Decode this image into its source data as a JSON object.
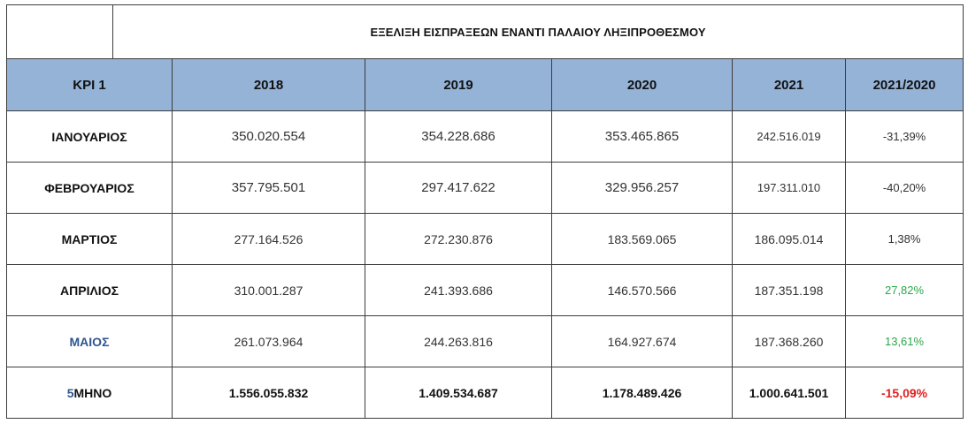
{
  "title": "ΕΞΕΛΙΞΗ ΕΙΣΠΡΑΞΕΩΝ ΕΝΑΝΤΙ ΠΑΛΑΙΟΥ ΛΗΞΙΠΡΟΘΕΣΜΟΥ",
  "headers": [
    "KPI 1",
    "2018",
    "2019",
    "2020",
    "2021",
    "2021/2020"
  ],
  "rows": [
    {
      "label": "ΙΑΝΟΥΑΡΙΟΣ",
      "values": [
        "350.020.554",
        "354.228.686",
        "353.465.865",
        "242.516.019",
        "-31,39%"
      ],
      "label_color": "#111111",
      "pct_color": "#333333"
    },
    {
      "label": "ΦΕΒΡΟΥΑΡΙΟΣ",
      "values": [
        "357.795.501",
        "297.417.622",
        "329.956.257",
        "197.311.010",
        "-40,20%"
      ],
      "label_color": "#111111",
      "pct_color": "#333333"
    },
    {
      "label": "ΜΑΡΤΙΟΣ",
      "values": [
        "277.164.526",
        "272.230.876",
        "183.569.065",
        "186.095.014",
        "1,38%"
      ],
      "label_color": "#111111",
      "pct_color": "#333333"
    },
    {
      "label": "ΑΠΡΙΛΙΟΣ",
      "values": [
        "310.001.287",
        "241.393.686",
        "146.570.566",
        "187.351.198",
        "27,82%"
      ],
      "label_color": "#111111",
      "pct_color": "#2aa84a"
    },
    {
      "label": "ΜΑΙΟΣ",
      "values": [
        "261.073.964",
        "244.263.816",
        "164.927.674",
        "187.368.260",
        "13,61%"
      ],
      "label_color": "#2f5590",
      "pct_color": "#2aa84a"
    }
  ],
  "total": {
    "label_prefix": "5",
    "label_rest": "ΜΗΝΟ",
    "values": [
      "1.556.055.832",
      "1.409.534.687",
      "1.178.489.426",
      "1.000.641.501",
      "-15,09%"
    ],
    "pct_color": "#e02020"
  },
  "colors": {
    "header_bg": "#95b3d7",
    "border": "#3c3c3c"
  }
}
